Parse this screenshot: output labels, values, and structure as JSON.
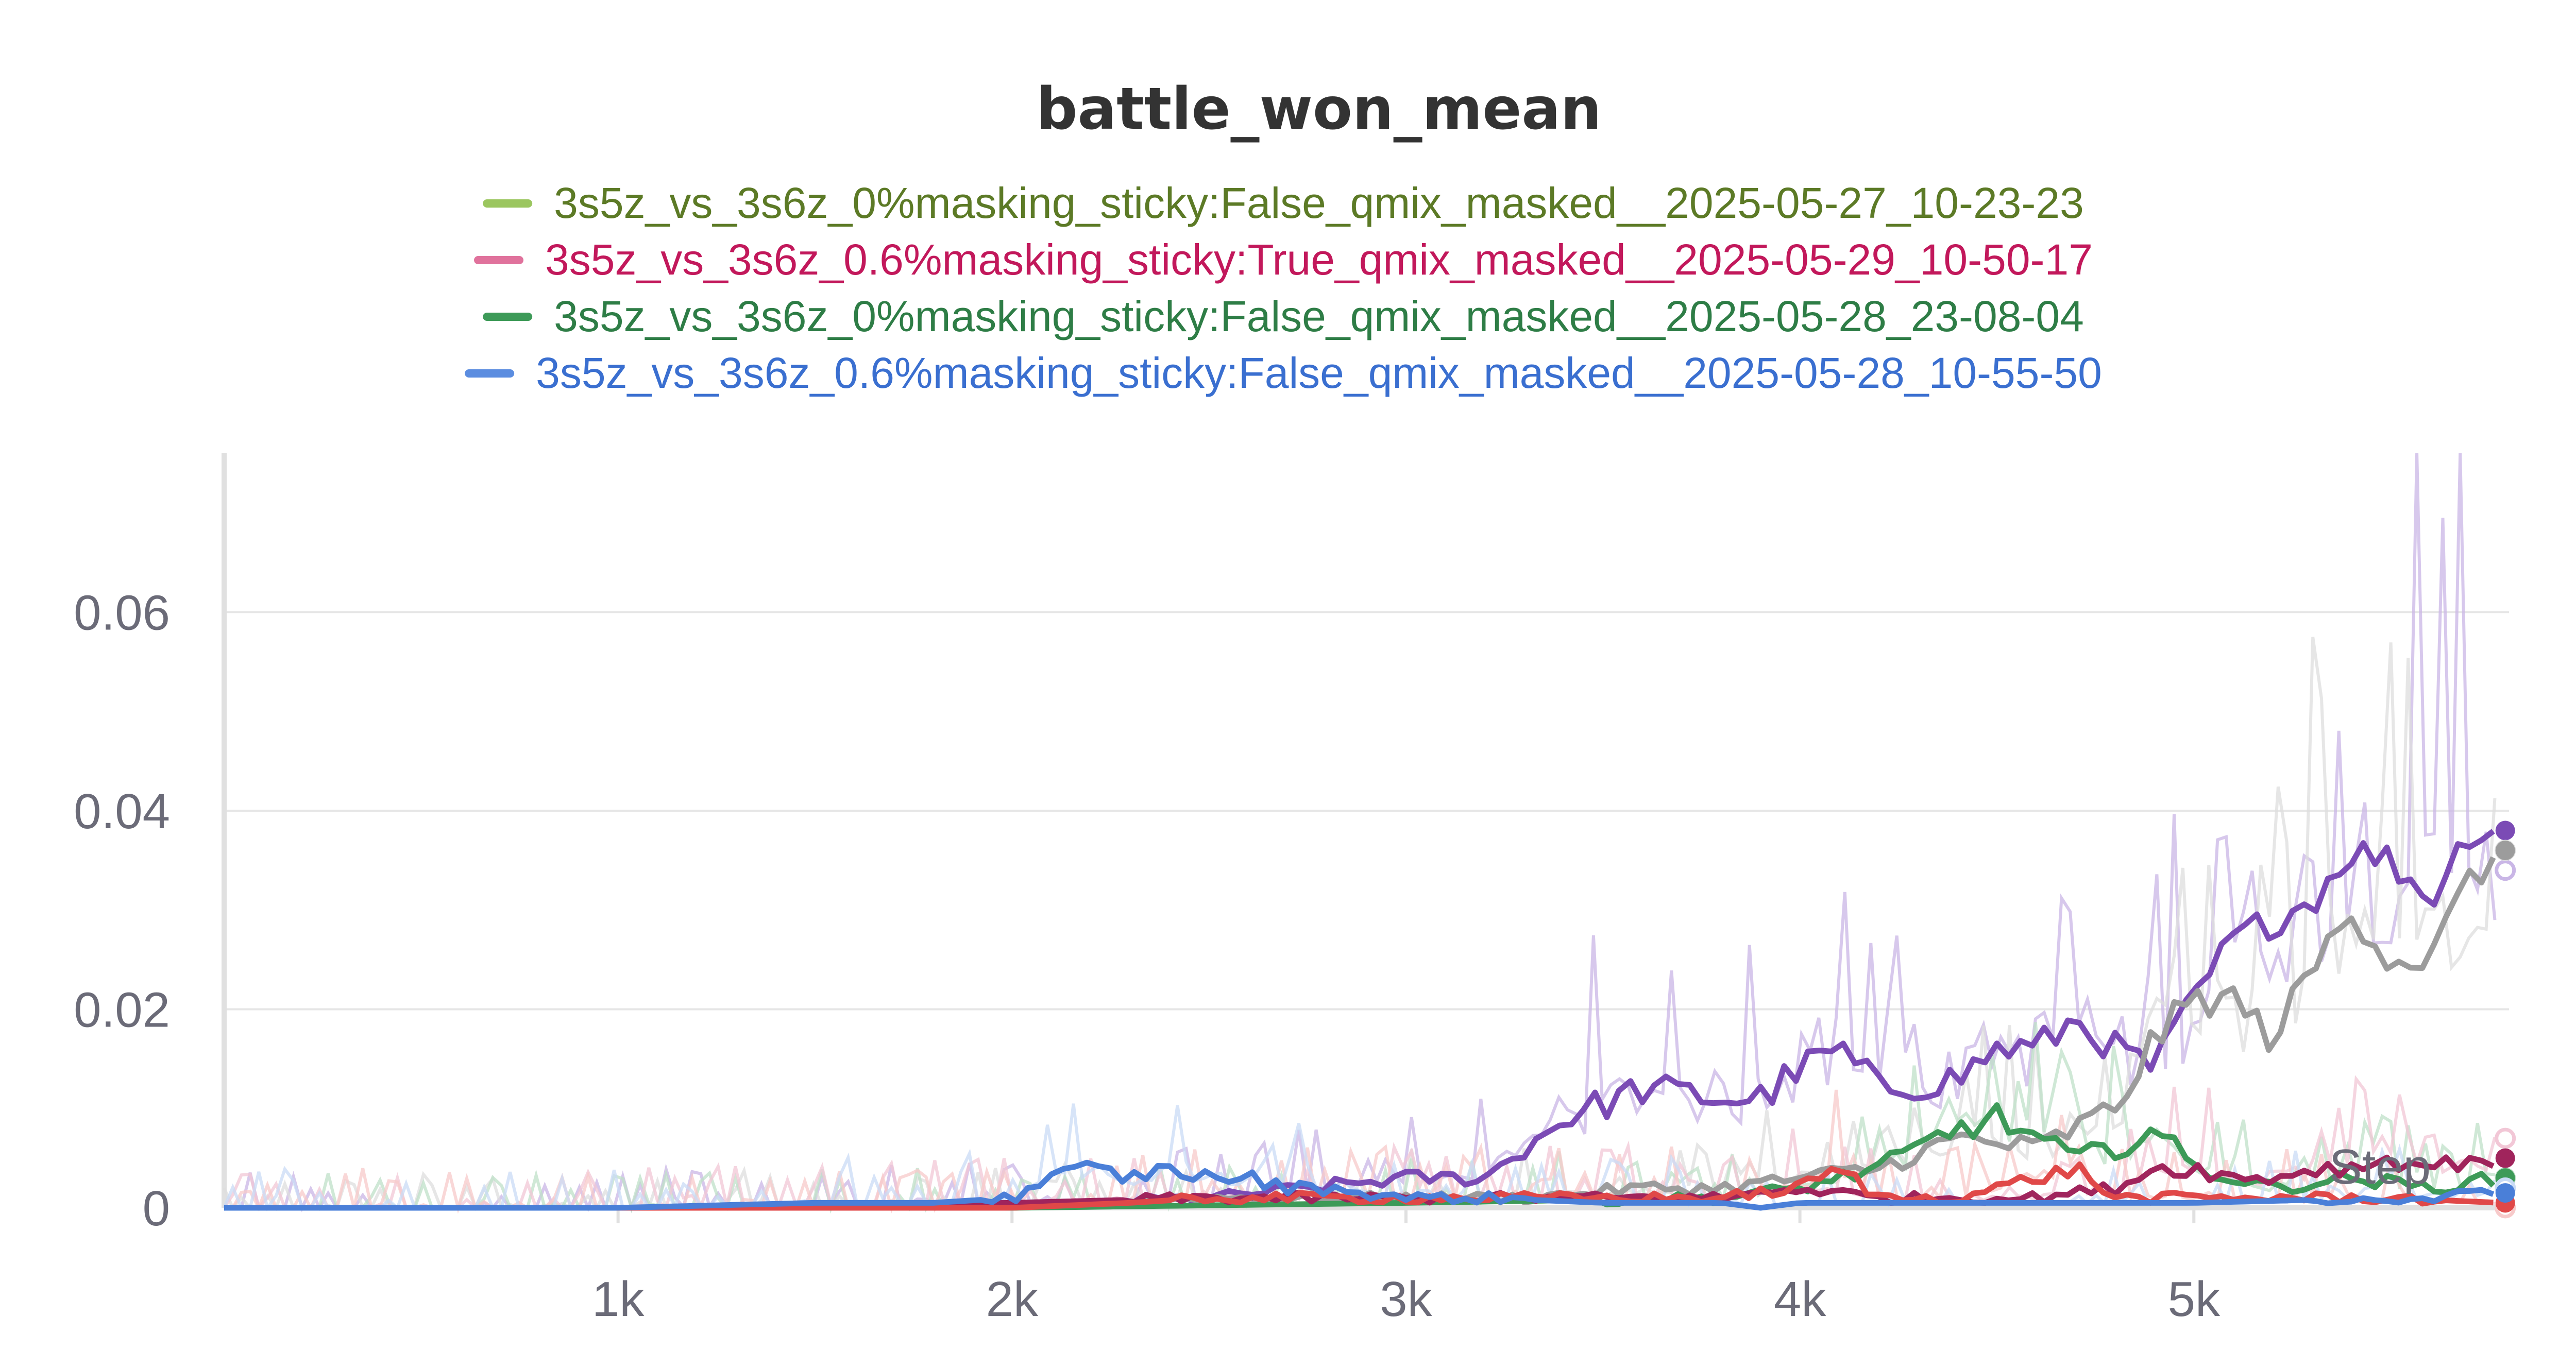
{
  "chart_data": {
    "type": "line",
    "title": "battle_won_mean",
    "xlabel": "",
    "ylabel": "",
    "xlim": [
      0,
      5800
    ],
    "ylim": [
      0,
      0.076
    ],
    "x_ticks": [
      {
        "value": 1000,
        "label": "1k"
      },
      {
        "value": 2000,
        "label": "2k"
      },
      {
        "value": 3000,
        "label": "3k"
      },
      {
        "value": 4000,
        "label": "4k"
      },
      {
        "value": 5000,
        "label": "5k"
      }
    ],
    "y_ticks": [
      {
        "value": 0,
        "label": "0"
      },
      {
        "value": 0.02,
        "label": "0.02"
      },
      {
        "value": 0.04,
        "label": "0.04"
      },
      {
        "value": 0.06,
        "label": "0.06"
      }
    ],
    "grid": true,
    "legend_position": "top-center",
    "legend": [
      {
        "label": "3s5z_vs_3s6z_0%masking_sticky:False_qmix_masked__2025-05-27_10-23-23",
        "swatch_color": "#9bc65f",
        "text_color": "#5c7a26"
      },
      {
        "label": "3s5z_vs_3s6z_0.6%masking_sticky:True_qmix_masked__2025-05-29_10-50-17",
        "swatch_color": "#e0729c",
        "text_color": "#c2185b"
      },
      {
        "label": "3s5z_vs_3s6z_0%masking_sticky:False_qmix_masked__2025-05-28_23-08-04",
        "swatch_color": "#3d9a58",
        "text_color": "#2e7d46"
      },
      {
        "label": "3s5z_vs_3s6z_0.6%masking_sticky:False_qmix_masked__2025-05-28_10-55-50",
        "swatch_color": "#5b8de0",
        "text_color": "#3a6fd0"
      }
    ],
    "series": [
      {
        "color": "#7b4bb5",
        "raw_color": "#c9b6e6",
        "end_value": 0.038,
        "end_raw": 0.034,
        "x": [
          0,
          1000,
          2000,
          2500,
          3000,
          3200,
          3400,
          3600,
          3800,
          3900,
          4000,
          4100,
          4200,
          4400,
          4500,
          4600,
          4700,
          4800,
          4900,
          5000,
          5100,
          5200,
          5300,
          5400,
          5500,
          5600,
          5700,
          5780
        ],
        "y": [
          0,
          0,
          0.0005,
          0.001,
          0.003,
          0.003,
          0.009,
          0.012,
          0.011,
          0.011,
          0.014,
          0.016,
          0.012,
          0.013,
          0.016,
          0.016,
          0.019,
          0.016,
          0.014,
          0.021,
          0.027,
          0.029,
          0.031,
          0.036,
          0.035,
          0.031,
          0.038,
          0.038
        ]
      },
      {
        "color": "#9c9c9c",
        "raw_color": "#dedede",
        "end_value": 0.036,
        "end_raw": 0.036,
        "x": [
          0,
          1000,
          2000,
          2500,
          3000,
          3300,
          3600,
          3800,
          4000,
          4200,
          4400,
          4600,
          4800,
          4900,
          5000,
          5100,
          5200,
          5300,
          5400,
          5500,
          5600,
          5700,
          5780
        ],
        "y": [
          0,
          0,
          0,
          0.001,
          0.001,
          0.001,
          0.002,
          0.002,
          0.003,
          0.004,
          0.007,
          0.006,
          0.01,
          0.017,
          0.021,
          0.021,
          0.017,
          0.024,
          0.03,
          0.025,
          0.025,
          0.033,
          0.036
        ]
      },
      {
        "color": "#3d9a58",
        "raw_color": "#bfe0c8",
        "end_value": 0.003,
        "end_raw": 0.003,
        "x": [
          0,
          1000,
          2000,
          3000,
          3800,
          4000,
          4200,
          4300,
          4400,
          4500,
          4600,
          4700,
          4800,
          4900,
          5000,
          5100,
          5200,
          5400,
          5600,
          5780
        ],
        "y": [
          0,
          0,
          0,
          0.0005,
          0.001,
          0.002,
          0.004,
          0.006,
          0.008,
          0.009,
          0.007,
          0.005,
          0.006,
          0.008,
          0.004,
          0.003,
          0.002,
          0.003,
          0.002,
          0.003
        ]
      },
      {
        "color": "#a0245c",
        "raw_color": "#f2c7d6",
        "end_value": 0.005,
        "end_raw": 0.007,
        "x": [
          0,
          1000,
          2000,
          2500,
          3000,
          3500,
          3800,
          4000,
          4200,
          4400,
          4600,
          4800,
          4900,
          5000,
          5100,
          5200,
          5300,
          5400,
          5500,
          5600,
          5700,
          5780
        ],
        "y": [
          0,
          0,
          0.0005,
          0.001,
          0.001,
          0.001,
          0.001,
          0.002,
          0.001,
          0.001,
          0.001,
          0.002,
          0.004,
          0.004,
          0.003,
          0.003,
          0.004,
          0.004,
          0.005,
          0.004,
          0.005,
          0.005
        ]
      },
      {
        "color": "#e04848",
        "raw_color": "#f7caca",
        "end_value": 0.0005,
        "end_raw": 0.0,
        "x": [
          0,
          1000,
          2000,
          2300,
          2500,
          2800,
          3000,
          3300,
          3500,
          3800,
          4000,
          4100,
          4200,
          4400,
          4500,
          4600,
          4700,
          4800,
          5000,
          5200,
          5500,
          5780
        ],
        "y": [
          0,
          0,
          0,
          0.0005,
          0.001,
          0.001,
          0.001,
          0.001,
          0.001,
          0.001,
          0.002,
          0.004,
          0.001,
          0.001,
          0.002,
          0.003,
          0.004,
          0.001,
          0.001,
          0.001,
          0.001,
          0.0005
        ]
      },
      {
        "color": "#4a7fd8",
        "raw_color": "#c9dbf5",
        "end_value": 0.0015,
        "end_raw": 0.002,
        "x": [
          0,
          500,
          1000,
          1500,
          1800,
          2000,
          2100,
          2200,
          2300,
          2400,
          2500,
          2600,
          2700,
          2800,
          3000,
          3200,
          3500,
          3800,
          3900,
          4000,
          4500,
          5000,
          5500,
          5780
        ],
        "y": [
          0,
          0,
          0,
          0.0005,
          0.0005,
          0.001,
          0.003,
          0.004,
          0.003,
          0.004,
          0.003,
          0.003,
          0.002,
          0.002,
          0.001,
          0.001,
          0.0005,
          0.0005,
          0,
          0.0005,
          0.0005,
          0.0005,
          0.001,
          0.0015
        ]
      }
    ],
    "annotations": [
      {
        "text": "Step",
        "x": 5500,
        "y": 0.004
      }
    ]
  }
}
